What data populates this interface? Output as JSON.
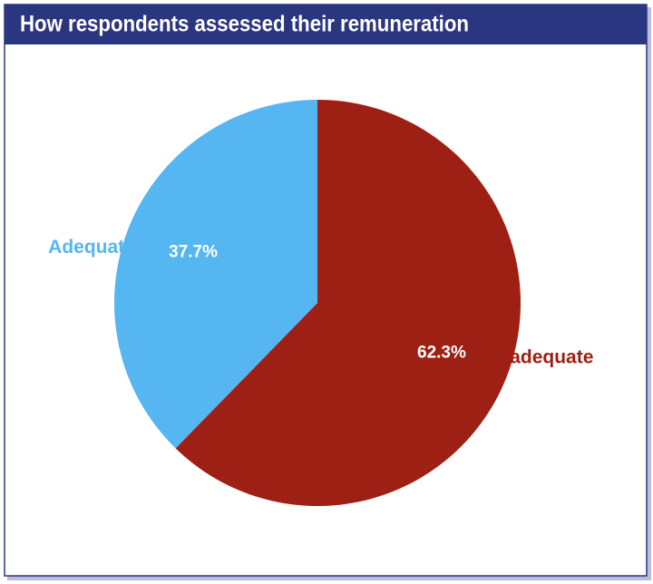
{
  "chart_data": {
    "type": "pie",
    "title": "How respondents assessed their remuneration",
    "categories": [
      "Inadequate",
      "Adequate"
    ],
    "values": [
      62.3,
      37.7
    ],
    "value_labels": [
      "62.3%",
      "37.7%"
    ],
    "colors": [
      "#9e1f14",
      "#55b6f2"
    ]
  }
}
